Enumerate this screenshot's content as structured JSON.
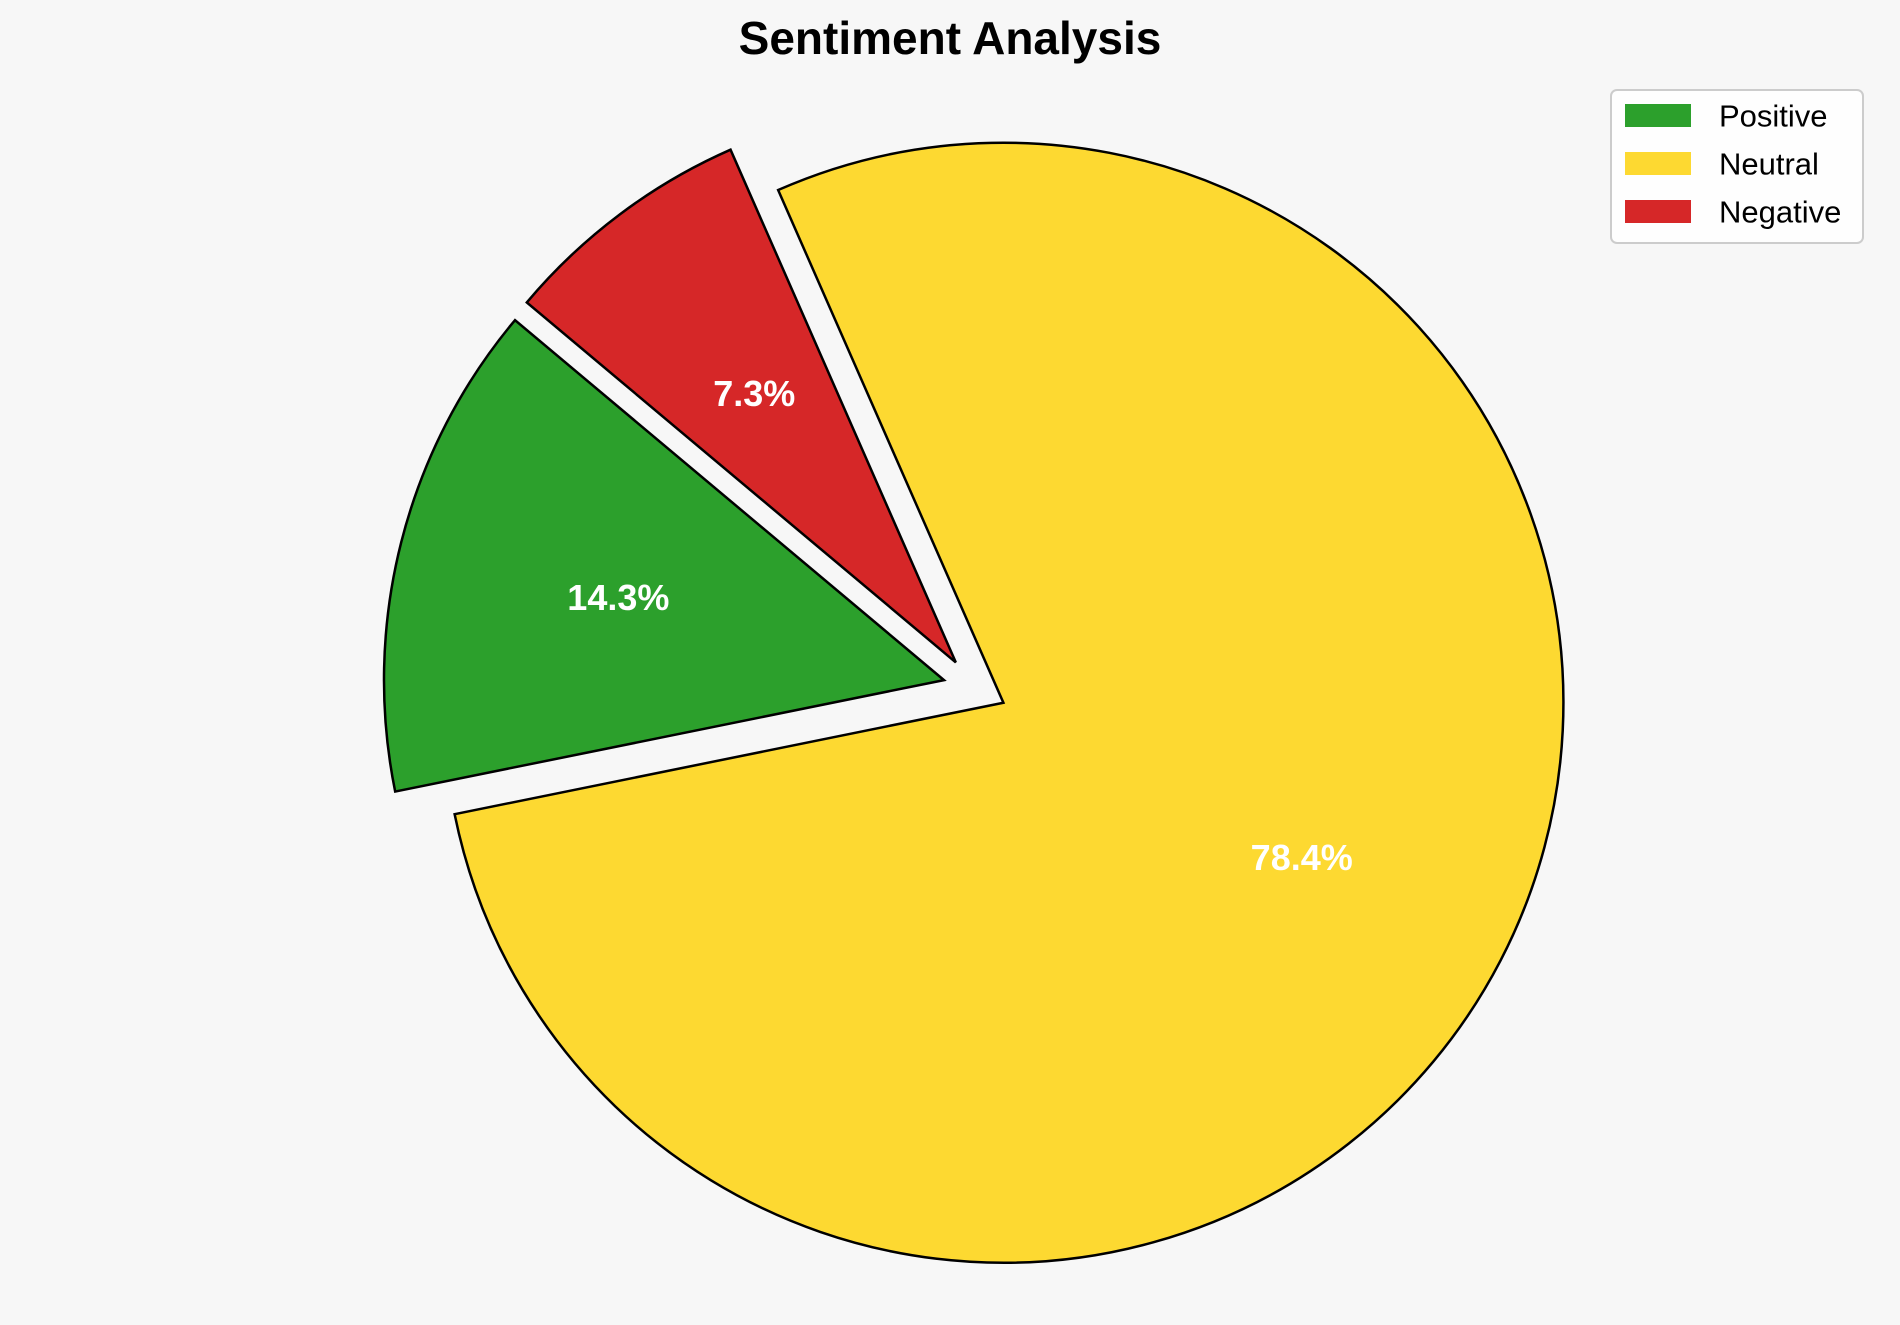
{
  "chart_data": {
    "type": "pie",
    "title": "Sentiment Analysis",
    "slices": [
      {
        "label": "Positive",
        "value": 14.3,
        "display": "14.3%",
        "color": "#2ca02c",
        "exploded": true
      },
      {
        "label": "Neutral",
        "value": 78.4,
        "display": "78.4%",
        "color": "#fdd931",
        "exploded": true
      },
      {
        "label": "Negative",
        "value": 7.3,
        "display": "7.3%",
        "color": "#d62728",
        "exploded": true
      }
    ],
    "legend": {
      "placement": "top-right",
      "entries": [
        "Positive",
        "Neutral",
        "Negative"
      ]
    },
    "edge_color": "#000000",
    "label_color": "#ffffff",
    "background": "#f7f7f7"
  }
}
